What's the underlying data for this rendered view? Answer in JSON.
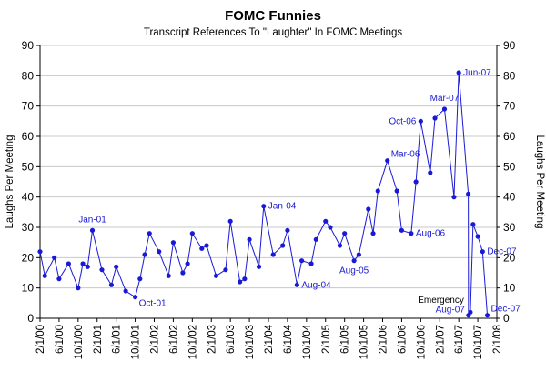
{
  "chart_data": {
    "type": "line",
    "title": "FOMC Funnies",
    "subtitle": "Transcript References To \"Laughter\" In FOMC Meetings",
    "ylabel": "Laughs Per Meeting",
    "ylim": [
      0,
      90
    ],
    "yticks": [
      0,
      10,
      20,
      30,
      40,
      50,
      60,
      70,
      80,
      90
    ],
    "xlim": [
      2000.0833,
      2008.0833
    ],
    "xticks": [
      {
        "label": "2/1/00",
        "t": 2000.0833
      },
      {
        "label": "6/1/00",
        "t": 2000.4167
      },
      {
        "label": "10/1/00",
        "t": 2000.75
      },
      {
        "label": "2/1/01",
        "t": 2001.0833
      },
      {
        "label": "6/1/01",
        "t": 2001.4167
      },
      {
        "label": "10/1/01",
        "t": 2001.75
      },
      {
        "label": "2/1/02",
        "t": 2002.0833
      },
      {
        "label": "6/1/02",
        "t": 2002.4167
      },
      {
        "label": "10/1/02",
        "t": 2002.75
      },
      {
        "label": "2/1/03",
        "t": 2003.0833
      },
      {
        "label": "6/1/03",
        "t": 2003.4167
      },
      {
        "label": "10/1/03",
        "t": 2003.75
      },
      {
        "label": "2/1/04",
        "t": 2004.0833
      },
      {
        "label": "6/1/04",
        "t": 2004.4167
      },
      {
        "label": "10/1/04",
        "t": 2004.75
      },
      {
        "label": "2/1/05",
        "t": 2005.0833
      },
      {
        "label": "6/1/05",
        "t": 2005.4167
      },
      {
        "label": "10/1/05",
        "t": 2005.75
      },
      {
        "label": "2/1/06",
        "t": 2006.0833
      },
      {
        "label": "6/1/06",
        "t": 2006.4167
      },
      {
        "label": "10/1/06",
        "t": 2006.75
      },
      {
        "label": "2/1/07",
        "t": 2007.0833
      },
      {
        "label": "6/1/07",
        "t": 2007.4167
      },
      {
        "label": "10/1/07",
        "t": 2007.75
      },
      {
        "label": "2/1/08",
        "t": 2008.0833
      }
    ],
    "grid": true,
    "colors": {
      "series": "#1a1ad6",
      "grid": "#c8c8c8",
      "axis": "#000000"
    },
    "series": [
      {
        "points": [
          [
            2000.0833,
            22
          ],
          [
            2000.1667,
            14
          ],
          [
            2000.3333,
            20
          ],
          [
            2000.4167,
            13
          ],
          [
            2000.5833,
            18
          ],
          [
            2000.75,
            10
          ],
          [
            2000.8333,
            18
          ],
          [
            2000.9167,
            17
          ],
          [
            2001.0,
            29
          ],
          [
            2001.1667,
            16
          ],
          [
            2001.3333,
            11
          ],
          [
            2001.4167,
            17
          ],
          [
            2001.5833,
            9
          ],
          [
            2001.75,
            7
          ],
          [
            2001.8333,
            13
          ],
          [
            2001.9167,
            21
          ],
          [
            2002.0,
            28
          ],
          [
            2002.1667,
            22
          ],
          [
            2002.3333,
            14
          ],
          [
            2002.4167,
            25
          ],
          [
            2002.5833,
            15
          ],
          [
            2002.6667,
            18
          ],
          [
            2002.75,
            28
          ],
          [
            2002.9167,
            23
          ],
          [
            2003.0,
            24
          ],
          [
            2003.1667,
            14
          ],
          [
            2003.3333,
            16
          ],
          [
            2003.4167,
            32
          ],
          [
            2003.5833,
            12
          ],
          [
            2003.6667,
            13
          ],
          [
            2003.75,
            26
          ],
          [
            2003.9167,
            17
          ],
          [
            2004.0,
            37
          ],
          [
            2004.1667,
            21
          ],
          [
            2004.3333,
            24
          ],
          [
            2004.4167,
            29
          ],
          [
            2004.5833,
            11
          ],
          [
            2004.6667,
            19
          ],
          [
            2004.8333,
            18
          ],
          [
            2004.9167,
            26
          ],
          [
            2005.0833,
            32
          ],
          [
            2005.1667,
            30
          ],
          [
            2005.3333,
            24
          ],
          [
            2005.4167,
            28
          ],
          [
            2005.5833,
            19
          ],
          [
            2005.6667,
            21
          ],
          [
            2005.8333,
            36
          ],
          [
            2005.9167,
            28
          ],
          [
            2006.0,
            42
          ],
          [
            2006.1667,
            52
          ],
          [
            2006.3333,
            42
          ],
          [
            2006.4167,
            29
          ],
          [
            2006.5833,
            28
          ],
          [
            2006.6667,
            45
          ],
          [
            2006.75,
            65
          ],
          [
            2006.9167,
            48
          ],
          [
            2007.0,
            66
          ],
          [
            2007.1667,
            69
          ],
          [
            2007.3333,
            40
          ],
          [
            2007.4167,
            81
          ],
          [
            2007.5833,
            41
          ],
          [
            2007.5867,
            1
          ],
          [
            2007.62,
            2
          ],
          [
            2007.6667,
            31
          ],
          [
            2007.75,
            27
          ],
          [
            2007.8333,
            22
          ],
          [
            2007.9167,
            1
          ]
        ]
      }
    ],
    "annotations": [
      {
        "text": "Jan-01",
        "x": 2001.0,
        "y": 29,
        "pos": "above"
      },
      {
        "text": "Oct-01",
        "x": 2001.75,
        "y": 7,
        "pos": "right-below"
      },
      {
        "text": "Jan-04",
        "x": 2004.0,
        "y": 37,
        "pos": "right"
      },
      {
        "text": "Aug-04",
        "x": 2004.5833,
        "y": 11,
        "pos": "right"
      },
      {
        "text": "Aug-05",
        "x": 2005.5833,
        "y": 19,
        "pos": "below"
      },
      {
        "text": "Mar-06",
        "x": 2006.1667,
        "y": 52,
        "pos": "right-above"
      },
      {
        "text": "Aug-06",
        "x": 2006.5833,
        "y": 28,
        "pos": "right"
      },
      {
        "text": "Oct-06",
        "x": 2006.75,
        "y": 65,
        "pos": "left"
      },
      {
        "text": "Mar-07",
        "x": 2007.1667,
        "y": 69,
        "pos": "above"
      },
      {
        "text": "Jun-07",
        "x": 2007.4167,
        "y": 81,
        "pos": "right"
      },
      {
        "text": "Aug-07",
        "x": 2007.5867,
        "y": 1,
        "pos": "left-above"
      },
      {
        "text": "Dec-07",
        "x": 2007.8333,
        "y": 22,
        "pos": "right"
      },
      {
        "text": "Dec-07",
        "x": 2007.9167,
        "y": 1,
        "pos": "right-above"
      }
    ],
    "notes": [
      {
        "text": "Emergency",
        "x": 2007.5867,
        "y": 6
      }
    ]
  }
}
